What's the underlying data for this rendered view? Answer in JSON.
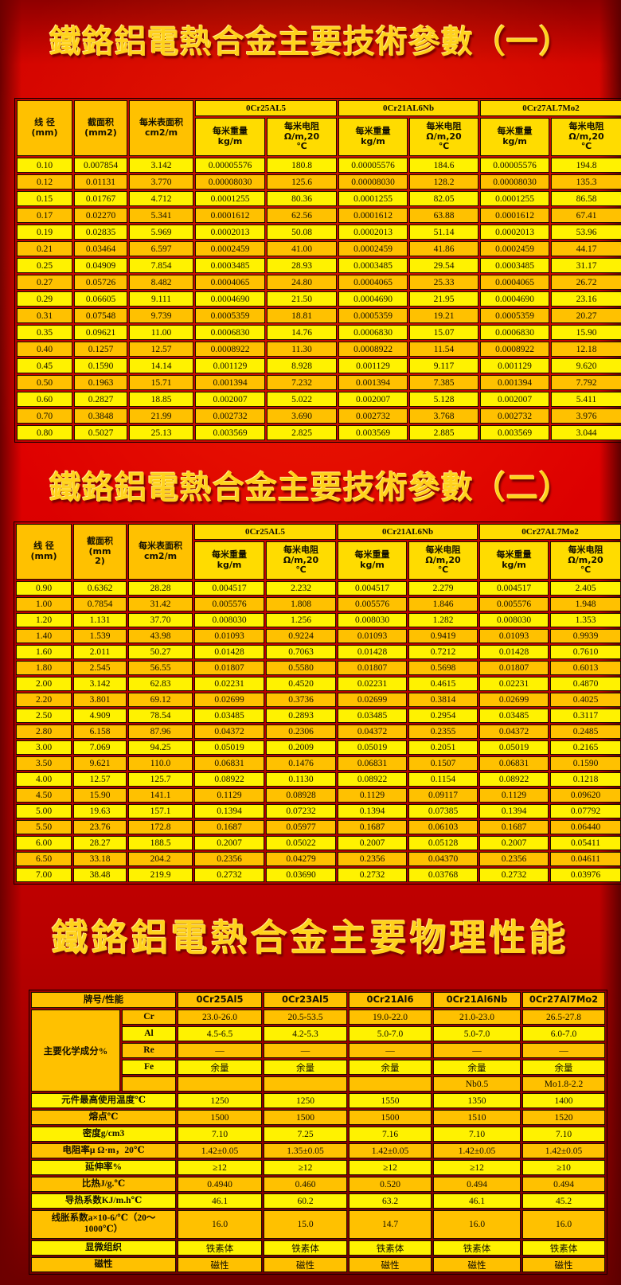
{
  "titles": {
    "title1": "鐵鉻鋁電熱合金主要技術參數（一）",
    "title2": "鐵鉻鋁電熱合金主要技術參數（二）",
    "title3": "鐵鉻鋁電熱合金主要物理性能"
  },
  "colors": {
    "background_red": "#d40000",
    "dark_red_edge": "#6d0000",
    "title_gold": "#ffd21c",
    "row_yellow": "#fff200",
    "row_gold": "#ffc100",
    "header_gold": "#ffc100",
    "header_light": "#ffdc00",
    "cell_border": "#191100"
  },
  "alloys": [
    "0Cr25AL5",
    "0Cr21AL6Nb",
    "0Cr27AL7Mo2"
  ],
  "headers": {
    "diameter": "线 径\n(mm)",
    "area_t1": "截面积\n(mm2)",
    "area_t2": "截面积\n(mm\n2)",
    "surface": "每米表面积\ncm2/m",
    "weight": "每米重量\nkg/m",
    "resistance": "每米电阻\nΩ/m,20\n℃"
  },
  "table1": {
    "rows": [
      [
        "0.10",
        "0.007854",
        "3.142",
        "0.00005576",
        "180.8",
        "0.00005576",
        "184.6",
        "0.00005576",
        "194.8"
      ],
      [
        "0.12",
        "0.01131",
        "3.770",
        "0.00008030",
        "125.6",
        "0.00008030",
        "128.2",
        "0.00008030",
        "135.3"
      ],
      [
        "0.15",
        "0.01767",
        "4.712",
        "0.0001255",
        "80.36",
        "0.0001255",
        "82.05",
        "0.0001255",
        "86.58"
      ],
      [
        "0.17",
        "0.02270",
        "5.341",
        "0.0001612",
        "62.56",
        "0.0001612",
        "63.88",
        "0.0001612",
        "67.41"
      ],
      [
        "0.19",
        "0.02835",
        "5.969",
        "0.0002013",
        "50.08",
        "0.0002013",
        "51.14",
        "0.0002013",
        "53.96"
      ],
      [
        "0.21",
        "0.03464",
        "6.597",
        "0.0002459",
        "41.00",
        "0.0002459",
        "41.86",
        "0.0002459",
        "44.17"
      ],
      [
        "0.25",
        "0.04909",
        "7.854",
        "0.0003485",
        "28.93",
        "0.0003485",
        "29.54",
        "0.0003485",
        "31.17"
      ],
      [
        "0.27",
        "0.05726",
        "8.482",
        "0.0004065",
        "24.80",
        "0.0004065",
        "25.33",
        "0.0004065",
        "26.72"
      ],
      [
        "0.29",
        "0.06605",
        "9.111",
        "0.0004690",
        "21.50",
        "0.0004690",
        "21.95",
        "0.0004690",
        "23.16"
      ],
      [
        "0.31",
        "0.07548",
        "9.739",
        "0.0005359",
        "18.81",
        "0.0005359",
        "19.21",
        "0.0005359",
        "20.27"
      ],
      [
        "0.35",
        "0.09621",
        "11.00",
        "0.0006830",
        "14.76",
        "0.0006830",
        "15.07",
        "0.0006830",
        "15.90"
      ],
      [
        "0.40",
        "0.1257",
        "12.57",
        "0.0008922",
        "11.30",
        "0.0008922",
        "11.54",
        "0.0008922",
        "12.18"
      ],
      [
        "0.45",
        "0.1590",
        "14.14",
        "0.001129",
        "8.928",
        "0.001129",
        "9.117",
        "0.001129",
        "9.620"
      ],
      [
        "0.50",
        "0.1963",
        "15.71",
        "0.001394",
        "7.232",
        "0.001394",
        "7.385",
        "0.001394",
        "7.792"
      ],
      [
        "0.60",
        "0.2827",
        "18.85",
        "0.002007",
        "5.022",
        "0.002007",
        "5.128",
        "0.002007",
        "5.411"
      ],
      [
        "0.70",
        "0.3848",
        "21.99",
        "0.002732",
        "3.690",
        "0.002732",
        "3.768",
        "0.002732",
        "3.976"
      ],
      [
        "0.80",
        "0.5027",
        "25.13",
        "0.003569",
        "2.825",
        "0.003569",
        "2.885",
        "0.003569",
        "3.044"
      ]
    ]
  },
  "table2": {
    "rows": [
      [
        "0.90",
        "0.6362",
        "28.28",
        "0.004517",
        "2.232",
        "0.004517",
        "2.279",
        "0.004517",
        "2.405"
      ],
      [
        "1.00",
        "0.7854",
        "31.42",
        "0.005576",
        "1.808",
        "0.005576",
        "1.846",
        "0.005576",
        "1.948"
      ],
      [
        "1.20",
        "1.131",
        "37.70",
        "0.008030",
        "1.256",
        "0.008030",
        "1.282",
        "0.008030",
        "1.353"
      ],
      [
        "1.40",
        "1.539",
        "43.98",
        "0.01093",
        "0.9224",
        "0.01093",
        "0.9419",
        "0.01093",
        "0.9939"
      ],
      [
        "1.60",
        "2.011",
        "50.27",
        "0.01428",
        "0.7063",
        "0.01428",
        "0.7212",
        "0.01428",
        "0.7610"
      ],
      [
        "1.80",
        "2.545",
        "56.55",
        "0.01807",
        "0.5580",
        "0.01807",
        "0.5698",
        "0.01807",
        "0.6013"
      ],
      [
        "2.00",
        "3.142",
        "62.83",
        "0.02231",
        "0.4520",
        "0.02231",
        "0.4615",
        "0.02231",
        "0.4870"
      ],
      [
        "2.20",
        "3.801",
        "69.12",
        "0.02699",
        "0.3736",
        "0.02699",
        "0.3814",
        "0.02699",
        "0.4025"
      ],
      [
        "2.50",
        "4.909",
        "78.54",
        "0.03485",
        "0.2893",
        "0.03485",
        "0.2954",
        "0.03485",
        "0.3117"
      ],
      [
        "2.80",
        "6.158",
        "87.96",
        "0.04372",
        "0.2306",
        "0.04372",
        "0.2355",
        "0.04372",
        "0.2485"
      ],
      [
        "3.00",
        "7.069",
        "94.25",
        "0.05019",
        "0.2009",
        "0.05019",
        "0.2051",
        "0.05019",
        "0.2165"
      ],
      [
        "3.50",
        "9.621",
        "110.0",
        "0.06831",
        "0.1476",
        "0.06831",
        "0.1507",
        "0.06831",
        "0.1590"
      ],
      [
        "4.00",
        "12.57",
        "125.7",
        "0.08922",
        "0.1130",
        "0.08922",
        "0.1154",
        "0.08922",
        "0.1218"
      ],
      [
        "4.50",
        "15.90",
        "141.1",
        "0.1129",
        "0.08928",
        "0.1129",
        "0.09117",
        "0.1129",
        "0.09620"
      ],
      [
        "5.00",
        "19.63",
        "157.1",
        "0.1394",
        "0.07232",
        "0.1394",
        "0.07385",
        "0.1394",
        "0.07792"
      ],
      [
        "5.50",
        "23.76",
        "172.8",
        "0.1687",
        "0.05977",
        "0.1687",
        "0.06103",
        "0.1687",
        "0.06440"
      ],
      [
        "6.00",
        "28.27",
        "188.5",
        "0.2007",
        "0.05022",
        "0.2007",
        "0.05128",
        "0.2007",
        "0.05411"
      ],
      [
        "6.50",
        "33.18",
        "204.2",
        "0.2356",
        "0.04279",
        "0.2356",
        "0.04370",
        "0.2356",
        "0.04611"
      ],
      [
        "7.00",
        "38.48",
        "219.9",
        "0.2732",
        "0.03690",
        "0.2732",
        "0.03768",
        "0.2732",
        "0.03976"
      ]
    ]
  },
  "table3": {
    "header": [
      "牌号/性能",
      "0Cr25Al5",
      "0Cr23Al5",
      "0Cr21Al6",
      "0Cr21Al6Nb",
      "0Cr27Al7Mo2"
    ],
    "chem_label": "主要化学成分%",
    "chem": [
      {
        "el": "Cr",
        "vals": [
          "23.0-26.0",
          "20.5-53.5",
          "19.0-22.0",
          "21.0-23.0",
          "26.5-27.8"
        ]
      },
      {
        "el": "Al",
        "vals": [
          "4.5-6.5",
          "4.2-5.3",
          "5.0-7.0",
          "5.0-7.0",
          "6.0-7.0"
        ]
      },
      {
        "el": "Re",
        "vals": [
          "—",
          "—",
          "—",
          "—",
          "—"
        ]
      },
      {
        "el": "Fe",
        "vals": [
          "余量",
          "余量",
          "余量",
          "余量",
          "余量"
        ]
      },
      {
        "el": "",
        "vals": [
          "",
          "",
          "",
          "Nb0.5",
          "Mo1.8-2.2"
        ]
      }
    ],
    "props": [
      {
        "label": "元件最高使用温度℃",
        "vals": [
          "1250",
          "1250",
          "1550",
          "1350",
          "1400"
        ]
      },
      {
        "label": "熔点℃",
        "vals": [
          "1500",
          "1500",
          "1500",
          "1510",
          "1520"
        ]
      },
      {
        "label": "密度g/cm3",
        "vals": [
          "7.10",
          "7.25",
          "7.16",
          "7.10",
          "7.10"
        ]
      },
      {
        "label": "电阻率μ Ω·m，20℃",
        "vals": [
          "1.42±0.05",
          "1.35±0.05",
          "1.42±0.05",
          "1.42±0.05",
          "1.42±0.05"
        ]
      },
      {
        "label": "延伸率%",
        "vals": [
          "≥12",
          "≥12",
          "≥12",
          "≥12",
          "≥10"
        ]
      },
      {
        "label": "比热J/g.℃",
        "vals": [
          "0.4940",
          "0.460",
          "0.520",
          "0.494",
          "0.494"
        ]
      },
      {
        "label": "导热系数KJ/m.h℃",
        "vals": [
          "46.1",
          "60.2",
          "63.2",
          "46.1",
          "45.2"
        ]
      },
      {
        "label": "线胀系数a×10-6/℃（20～\n1000℃）",
        "vals": [
          "16.0",
          "15.0",
          "14.7",
          "16.0",
          "16.0"
        ],
        "tall": true
      },
      {
        "label": "显微组织",
        "vals": [
          "铁素体",
          "铁素体",
          "铁素体",
          "铁素体",
          "铁素体"
        ]
      },
      {
        "label": "磁性",
        "vals": [
          "磁性",
          "磁性",
          "磁性",
          "磁性",
          "磁性"
        ]
      }
    ]
  }
}
